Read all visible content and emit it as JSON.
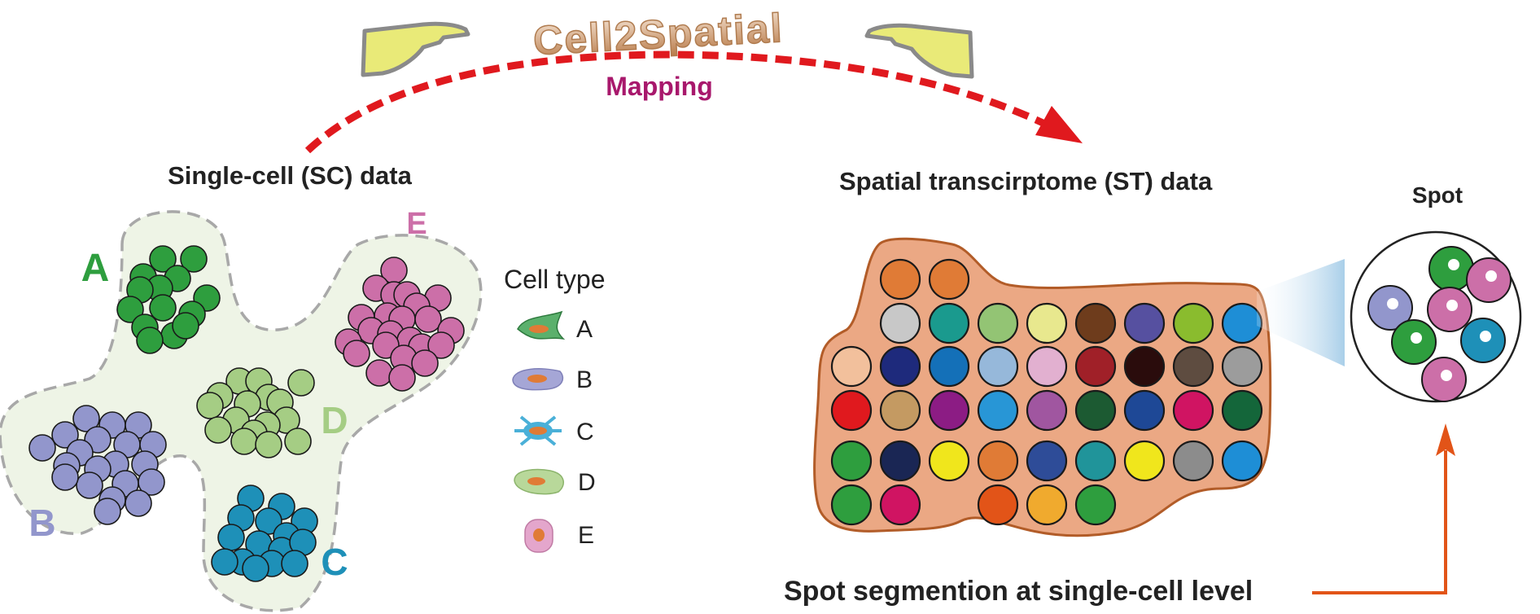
{
  "header": {
    "tool_name": "Cell2Spatial",
    "mapping_label": "Mapping"
  },
  "sc_panel": {
    "title": "Single-cell (SC) data",
    "clusters": [
      {
        "letter": "A",
        "color": "#2e9e3e"
      },
      {
        "letter": "B",
        "color": "#9296cc"
      },
      {
        "letter": "C",
        "color": "#1e90b8"
      },
      {
        "letter": "D",
        "color": "#a5cd84"
      },
      {
        "letter": "E",
        "color": "#cc6fa8"
      }
    ],
    "region_fill": "#eef4e6"
  },
  "legend": {
    "title": "Cell type",
    "items": [
      {
        "label": "A",
        "icon": "cell-a-icon",
        "color": "#5bb06c"
      },
      {
        "label": "B",
        "icon": "cell-b-icon",
        "color": "#a5a6d6"
      },
      {
        "label": "C",
        "icon": "cell-c-icon",
        "color": "#4ab0d8"
      },
      {
        "label": "D",
        "icon": "cell-d-icon",
        "color": "#b8d89a"
      },
      {
        "label": "E",
        "icon": "cell-e-icon",
        "color": "#e4a6cc"
      }
    ]
  },
  "st_panel": {
    "title": "Spatial transcirptome (ST) data",
    "tissue_fill": "#eba884",
    "tissue_stroke": "#b25c28",
    "spot_colors": [
      [
        "#e07b36",
        "#e07b36",
        null,
        null,
        null,
        null,
        null,
        null
      ],
      [
        "#c8c8c8",
        "#1a9a8e",
        "#93c474",
        "#e8e88e",
        "#6e3c1c",
        "#5650a0",
        "#8abc2e",
        "#1e8ed6"
      ],
      [
        "#f2c09c",
        "#1e2a7c",
        "#1470b8",
        "#96b8da",
        "#e2b0d0",
        "#a02028",
        "#2a0c0c",
        "#5e4c40",
        "#9c9c9c"
      ],
      [
        "#e0191e",
        "#c49a62",
        "#8c1c84",
        "#2896d6",
        "#a056a0",
        "#1c5a32",
        "#1e4896",
        "#d01462",
        "#14663a"
      ],
      [
        "#2e9e3e",
        "#1a2654",
        "#f0e61c",
        "#e07b36",
        "#2e4c98",
        "#20949a",
        "#f0e61c",
        "#8c8c8c",
        "#1e8ed6"
      ],
      [
        "#2e9e3e",
        "#d01462",
        null,
        "#e25418",
        "#f0aa2e",
        "#2e9e3e",
        null,
        null,
        null
      ]
    ]
  },
  "spot_panel": {
    "title": "Spot",
    "cells": [
      {
        "color": "#2e9e3e"
      },
      {
        "color": "#cc6fa8"
      },
      {
        "color": "#9296cc"
      },
      {
        "color": "#cc6fa8"
      },
      {
        "color": "#2e9e3e"
      },
      {
        "color": "#1e90b8"
      },
      {
        "color": "#cc6fa8"
      }
    ]
  },
  "segmentation": {
    "label": "Spot segmention at single-cell level",
    "arrow_color": "#e25418"
  },
  "colors": {
    "mapping_text": "#a8186c",
    "mapping_arrow": "#e0191e",
    "hand_fill": "#e9ea78",
    "hand_stroke": "#8a8a8a",
    "title_gradient_start": "#f5dcc4",
    "title_gradient_end": "#c08a5a"
  }
}
